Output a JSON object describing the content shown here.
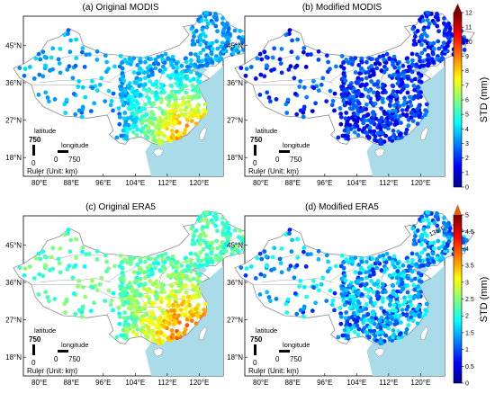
{
  "panels": [
    {
      "title": "(a) Original MODIS",
      "scale": 0,
      "scheme": "warm"
    },
    {
      "title": "(b) Modified MODIS",
      "scale": 0,
      "scheme": "cool"
    },
    {
      "title": "(c) Original ERA5",
      "scale": 1,
      "scheme": "warm"
    },
    {
      "title": "(d) Modified ERA5",
      "scale": 1,
      "scheme": "cool",
      "extra_label": "136°E"
    }
  ],
  "x_ticks": [
    "80°E",
    "88°E",
    "96°E",
    "104°E",
    "112°E",
    "120°E"
  ],
  "y_ticks": [
    "45°N",
    "36°N",
    "27°N",
    "18°N"
  ],
  "ruler": {
    "latitude": "latitude",
    "latitude_value": "750",
    "longitude": "longitude",
    "zero": "0",
    "longitude_value": "750",
    "caption": "Ruler (Unit: km)"
  },
  "colorbars": [
    {
      "label": "STD (mm)",
      "ticks": [
        "0",
        "1",
        "2",
        "3",
        "4",
        "5",
        "6",
        "7",
        "8",
        "9",
        "10",
        "11",
        "12"
      ],
      "min": 0,
      "max": 12
    },
    {
      "label": "STD (mm)",
      "ticks": [
        "0",
        "0.5",
        "1",
        "1.5",
        "2",
        "2.5",
        "3",
        "3.5",
        "4",
        "4.5",
        "5"
      ],
      "min": 0,
      "max": 5
    }
  ],
  "colors": {
    "sea": "#a9dbe8",
    "land": "#ffffff",
    "border": "#8c8c8c"
  }
}
